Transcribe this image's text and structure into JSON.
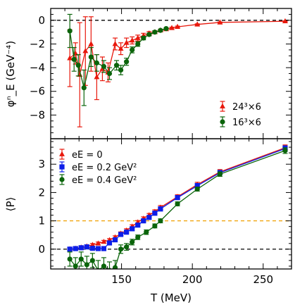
{
  "chart_data": [
    {
      "type": "scatter",
      "ylabel": "φⁿ_E (GeV⁻⁴)",
      "ylim": [
        -10,
        1
      ],
      "xlim": [
        100,
        270
      ],
      "yticks": [
        0,
        -2,
        -4,
        -6,
        -8
      ],
      "yticklabels": [
        "0",
        "−2",
        "−4",
        "−6",
        "−8"
      ],
      "reference_lines": [
        {
          "y": 0,
          "style": "dashed",
          "color": "#000000"
        }
      ],
      "legend_position": "bottom-right",
      "series": [
        {
          "name": "24³×6",
          "color": "#e8180c",
          "marker": "triangle",
          "connected": true,
          "points": [
            {
              "x": 113.5,
              "y": -3.2,
              "err": 2.4
            },
            {
              "x": 117.5,
              "y": -2.8,
              "err": 0.9
            },
            {
              "x": 120.5,
              "y": -4.6,
              "err": 4.4
            },
            {
              "x": 124.5,
              "y": -2.6,
              "err": 2.9
            },
            {
              "x": 128.5,
              "y": -2.0,
              "err": 2.3
            },
            {
              "x": 132.5,
              "y": -4.8,
              "err": 1.9
            },
            {
              "x": 136.5,
              "y": -4.1,
              "err": 1.0
            },
            {
              "x": 140.5,
              "y": -4.4,
              "err": 0.8
            },
            {
              "x": 145.5,
              "y": -2.0,
              "err": 0.5
            },
            {
              "x": 149.5,
              "y": -2.4,
              "err": 0.5
            },
            {
              "x": 153.5,
              "y": -1.9,
              "err": 0.4
            },
            {
              "x": 157.5,
              "y": -1.7,
              "err": 0.3
            },
            {
              "x": 161.5,
              "y": -1.5,
              "err": 0.25
            },
            {
              "x": 165.5,
              "y": -1.3,
              "err": 0.2
            },
            {
              "x": 169.5,
              "y": -1.1,
              "err": 0.15
            },
            {
              "x": 173.5,
              "y": -1.0,
              "err": 0.12
            },
            {
              "x": 177.5,
              "y": -0.85,
              "err": 0.1
            },
            {
              "x": 181.5,
              "y": -0.75,
              "err": 0.08
            },
            {
              "x": 185.5,
              "y": -0.65,
              "err": 0.07
            },
            {
              "x": 189.5,
              "y": -0.55,
              "err": 0.06
            },
            {
              "x": 203.5,
              "y": -0.35,
              "err": 0.05
            },
            {
              "x": 219.5,
              "y": -0.18,
              "err": 0.04
            },
            {
              "x": 265.5,
              "y": -0.08,
              "err": 0.03
            }
          ]
        },
        {
          "name": "16³×6",
          "color": "#0a640a",
          "marker": "circle",
          "connected": true,
          "points": [
            {
              "x": 113.5,
              "y": -0.9,
              "err": 1.4
            },
            {
              "x": 116.5,
              "y": -3.3,
              "err": 1.0
            },
            {
              "x": 119.5,
              "y": -3.8,
              "err": 0.9
            },
            {
              "x": 123.5,
              "y": -5.7,
              "err": 1.5
            },
            {
              "x": 128.5,
              "y": -3.1,
              "err": 0.8
            },
            {
              "x": 132.5,
              "y": -3.6,
              "err": 0.7
            },
            {
              "x": 137.5,
              "y": -3.9,
              "err": 0.5
            },
            {
              "x": 141.5,
              "y": -4.5,
              "err": 0.5
            },
            {
              "x": 146.5,
              "y": -3.8,
              "err": 0.4
            },
            {
              "x": 149.5,
              "y": -4.2,
              "err": 0.4
            },
            {
              "x": 153.5,
              "y": -3.5,
              "err": 0.3
            },
            {
              "x": 157.5,
              "y": -2.5,
              "err": 0.25
            },
            {
              "x": 161.5,
              "y": -2.0,
              "err": 0.2
            },
            {
              "x": 165.5,
              "y": -1.5,
              "err": 0.15
            },
            {
              "x": 169.5,
              "y": -1.2,
              "err": 0.12
            },
            {
              "x": 173.5,
              "y": -1.0,
              "err": 0.1
            },
            {
              "x": 177.5,
              "y": -0.85,
              "err": 0.08
            },
            {
              "x": 181.5,
              "y": -0.7,
              "err": 0.07
            }
          ]
        }
      ]
    },
    {
      "type": "scatter",
      "xlabel": "T (MeV)",
      "ylabel": "⟨P⟩",
      "xlim": [
        100,
        270
      ],
      "ylim": [
        -0.7,
        3.9
      ],
      "xticks": [
        150,
        200,
        250
      ],
      "xticklabels": [
        "150",
        "200",
        "250"
      ],
      "yticks": [
        0,
        1,
        2,
        3
      ],
      "yticklabels": [
        "0",
        "1",
        "2",
        "3"
      ],
      "reference_lines": [
        {
          "y": 0,
          "style": "dashed",
          "color": "#000000"
        },
        {
          "y": 1,
          "style": "dashed",
          "color": "#f0a000"
        }
      ],
      "legend_position": "top-left",
      "series": [
        {
          "name": "eE = 0",
          "color": "#e8180c",
          "marker": "triangle",
          "connected": true,
          "points": [
            {
              "x": 113.5,
              "y": 0.0,
              "err": 0.05
            },
            {
              "x": 117.5,
              "y": 0.02,
              "err": 0.05
            },
            {
              "x": 121.5,
              "y": 0.06,
              "err": 0.05
            },
            {
              "x": 125.5,
              "y": 0.1,
              "err": 0.05
            },
            {
              "x": 129.5,
              "y": 0.15,
              "err": 0.05
            },
            {
              "x": 133.5,
              "y": 0.2,
              "err": 0.05
            },
            {
              "x": 137.5,
              "y": 0.26,
              "err": 0.05
            },
            {
              "x": 141.5,
              "y": 0.32,
              "err": 0.05
            },
            {
              "x": 145.5,
              "y": 0.42,
              "err": 0.05
            },
            {
              "x": 149.5,
              "y": 0.55,
              "err": 0.06
            },
            {
              "x": 153.5,
              "y": 0.66,
              "err": 0.06
            },
            {
              "x": 157.5,
              "y": 0.8,
              "err": 0.06
            },
            {
              "x": 161.5,
              "y": 0.95,
              "err": 0.06
            },
            {
              "x": 165.5,
              "y": 1.08,
              "err": 0.06
            },
            {
              "x": 169.5,
              "y": 1.2,
              "err": 0.06
            },
            {
              "x": 173.5,
              "y": 1.32,
              "err": 0.07
            },
            {
              "x": 177.5,
              "y": 1.47,
              "err": 0.07
            },
            {
              "x": 189.5,
              "y": 1.85,
              "err": 0.07
            },
            {
              "x": 203.5,
              "y": 2.28,
              "err": 0.08
            },
            {
              "x": 219.5,
              "y": 2.73,
              "err": 0.08
            },
            {
              "x": 265.5,
              "y": 3.58,
              "err": 0.1
            }
          ]
        },
        {
          "name": "eE = 0.2 GeV²",
          "color": "#0c1ee8",
          "marker": "square",
          "connected": true,
          "points": [
            {
              "x": 113.5,
              "y": 0.0,
              "err": 0.06
            },
            {
              "x": 117.5,
              "y": 0.02,
              "err": 0.06
            },
            {
              "x": 121.5,
              "y": 0.05,
              "err": 0.06
            },
            {
              "x": 125.5,
              "y": 0.08,
              "err": 0.07
            },
            {
              "x": 129.5,
              "y": 0.03,
              "err": 0.06
            },
            {
              "x": 133.5,
              "y": 0.02,
              "err": 0.06
            },
            {
              "x": 137.5,
              "y": 0.02,
              "err": 0.06
            },
            {
              "x": 141.5,
              "y": 0.22,
              "err": 0.06
            },
            {
              "x": 145.5,
              "y": 0.33,
              "err": 0.06
            },
            {
              "x": 149.5,
              "y": 0.52,
              "err": 0.06
            },
            {
              "x": 153.5,
              "y": 0.6,
              "err": 0.06
            },
            {
              "x": 157.5,
              "y": 0.72,
              "err": 0.06
            },
            {
              "x": 161.5,
              "y": 0.85,
              "err": 0.06
            },
            {
              "x": 165.5,
              "y": 1.0,
              "err": 0.06
            },
            {
              "x": 169.5,
              "y": 1.12,
              "err": 0.06
            },
            {
              "x": 173.5,
              "y": 1.27,
              "err": 0.07
            },
            {
              "x": 177.5,
              "y": 1.42,
              "err": 0.07
            },
            {
              "x": 189.5,
              "y": 1.82,
              "err": 0.07
            },
            {
              "x": 203.5,
              "y": 2.24,
              "err": 0.08
            },
            {
              "x": 219.5,
              "y": 2.7,
              "err": 0.08
            },
            {
              "x": 265.5,
              "y": 3.55,
              "err": 0.1
            }
          ]
        },
        {
          "name": "eE = 0.4 GeV²",
          "color": "#0a640a",
          "marker": "circle",
          "connected": true,
          "points": [
            {
              "x": 113.5,
              "y": -0.35,
              "err": 0.25
            },
            {
              "x": 117.5,
              "y": -0.6,
              "err": 0.3
            },
            {
              "x": 121.5,
              "y": -0.35,
              "err": 0.25
            },
            {
              "x": 125.5,
              "y": -0.55,
              "err": 0.3
            },
            {
              "x": 129.5,
              "y": -0.4,
              "err": 0.25
            },
            {
              "x": 133.5,
              "y": -0.75,
              "err": 0.35
            },
            {
              "x": 137.5,
              "y": -0.6,
              "err": 0.3
            },
            {
              "x": 141.5,
              "y": -0.75,
              "err": 0.3
            },
            {
              "x": 145.5,
              "y": -0.65,
              "err": 0.25
            },
            {
              "x": 149.5,
              "y": 0.0,
              "err": 0.15
            },
            {
              "x": 153.5,
              "y": 0.08,
              "err": 0.12
            },
            {
              "x": 157.5,
              "y": 0.25,
              "err": 0.1
            },
            {
              "x": 161.5,
              "y": 0.42,
              "err": 0.08
            },
            {
              "x": 167.5,
              "y": 0.6,
              "err": 0.08
            },
            {
              "x": 173.5,
              "y": 0.82,
              "err": 0.07
            },
            {
              "x": 177.5,
              "y": 1.0,
              "err": 0.07
            },
            {
              "x": 189.5,
              "y": 1.6,
              "err": 0.07
            },
            {
              "x": 203.5,
              "y": 2.12,
              "err": 0.07
            },
            {
              "x": 219.5,
              "y": 2.65,
              "err": 0.08
            },
            {
              "x": 265.5,
              "y": 3.48,
              "err": 0.1
            }
          ]
        }
      ]
    }
  ]
}
